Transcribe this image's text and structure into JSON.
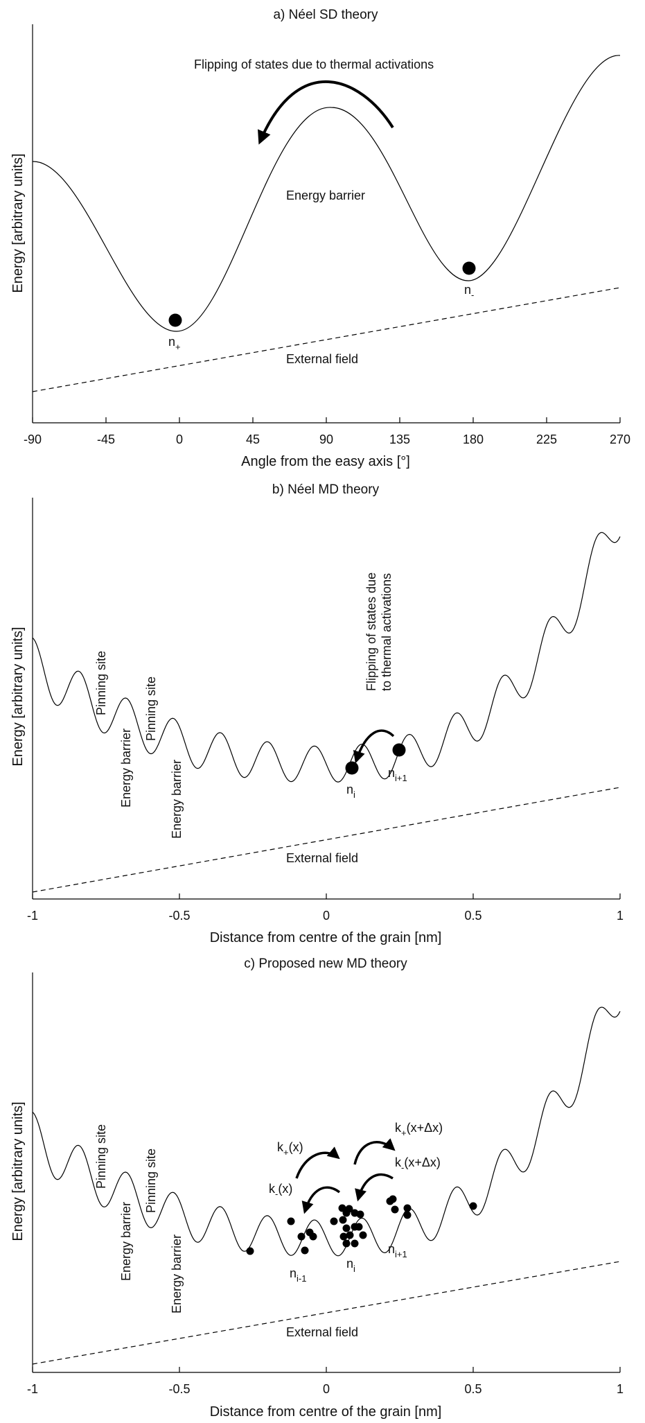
{
  "chart_data": [
    {
      "type": "line",
      "title": "a) Néel SD theory",
      "xlabel": "Angle from the easy axis [°]",
      "ylabel": "Energy [arbitrary units]",
      "xlim": [
        -90,
        270
      ],
      "x_ticks": [
        "-90",
        "-45",
        "0",
        "45",
        "90",
        "135",
        "180",
        "225",
        "270"
      ],
      "series": [
        {
          "style": "solid",
          "x": [
            -90,
            -45,
            0,
            45,
            90,
            135,
            180,
            225,
            270
          ],
          "y": [
            0.57,
            0.38,
            0.22,
            0.45,
            0.78,
            0.59,
            0.36,
            0.62,
            0.91
          ]
        },
        {
          "style": "dashed",
          "x": [
            -90,
            270
          ],
          "y": [
            0.08,
            0.34
          ]
        }
      ],
      "points": [
        {
          "x": -3,
          "y": 0.25
        },
        {
          "x": 178,
          "y": 0.38
        }
      ],
      "labels": {
        "arrow": "Flipping of states due to thermal activations",
        "barrier": "Energy barrier",
        "field": "External field",
        "state_left": {
          "base": "n",
          "sub": "+"
        },
        "state_right": {
          "base": "n",
          "sub": "-"
        }
      }
    },
    {
      "type": "line",
      "title": "b) Néel MD theory",
      "xlabel": "Distance from centre of the grain [nm]",
      "ylabel": "Energy [arbitrary units]",
      "xlim": [
        -1,
        1
      ],
      "x_ticks": [
        "-1",
        "-0.5",
        "0",
        "0.5",
        "1"
      ],
      "series": [
        {
          "style": "solid",
          "description_values": {
            "x": [
              -1,
              -0.9,
              -0.5,
              0,
              0.5,
              1
            ],
            "y": [
              0.57,
              0.47,
              0.33,
              0.32,
              0.48,
              0.9
            ]
          }
        },
        {
          "style": "dashed",
          "x": [
            -1,
            1
          ],
          "y": [
            0.02,
            0.28
          ]
        }
      ],
      "points": [
        {
          "x": 0.09,
          "y": 0.33
        },
        {
          "x": 0.25,
          "y": 0.37
        }
      ],
      "labels": {
        "pinning_1": "Pinning site",
        "pinning_2": "Pinning site",
        "barrier_1": "Energy barrier",
        "barrier_2": "Energy barrier",
        "arrow_line1": "Flipping of states due",
        "arrow_line2": "to thermal activations",
        "field": "External field",
        "state_i": {
          "base": "n",
          "sub": "i"
        },
        "state_i1": {
          "base": "n",
          "sub": "i+1"
        }
      }
    },
    {
      "type": "line",
      "title": "c) Proposed new MD theory",
      "xlabel": "Distance from centre of the grain [nm]",
      "ylabel": "Energy [arbitrary units]",
      "xlim": [
        -1,
        1
      ],
      "x_ticks": [
        "-1",
        "-0.5",
        "0",
        "0.5",
        "1"
      ],
      "series": [
        {
          "style": "solid",
          "description_values": {
            "x": [
              -1,
              -0.9,
              -0.5,
              0,
              0.5,
              1
            ],
            "y": [
              0.57,
              0.47,
              0.33,
              0.32,
              0.48,
              0.9
            ]
          }
        },
        {
          "style": "dashed",
          "x": [
            -1,
            1
          ],
          "y": [
            0.02,
            0.28
          ]
        }
      ],
      "labels": {
        "pinning_1": "Pinning site",
        "pinning_2": "Pinning site",
        "barrier_1": "Energy barrier",
        "barrier_2": "Energy barrier",
        "k_plus_x": {
          "base": "k",
          "sub": "+",
          "rest": "(x)"
        },
        "k_minus_x": {
          "base": "k",
          "sub": "-",
          "rest": "(x)"
        },
        "k_plus_xdx": {
          "base": "k",
          "sub": "+",
          "rest": "(x+Δx)"
        },
        "k_minus_xdx": {
          "base": "k",
          "sub": "-",
          "rest": "(x+Δx)"
        },
        "field": "External field",
        "state_im1": {
          "base": "n",
          "sub": "i-1"
        },
        "state_i": {
          "base": "n",
          "sub": "i"
        },
        "state_i1": {
          "base": "n",
          "sub": "i+1"
        }
      }
    }
  ]
}
